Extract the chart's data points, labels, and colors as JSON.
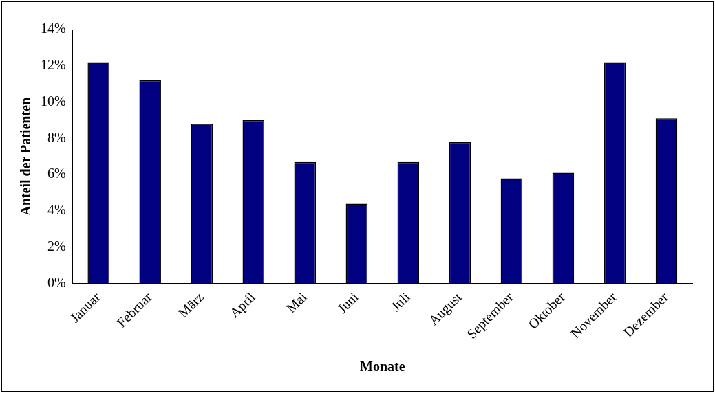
{
  "chart_data": {
    "type": "bar",
    "xlabel": "Monate",
    "ylabel": "Anteil der Patienten",
    "categories": [
      "Januar",
      "Februar",
      "März",
      "April",
      "Mai",
      "Juni",
      "Juli",
      "August",
      "September",
      "Oktober",
      "November",
      "Dezember"
    ],
    "values": [
      12.2,
      11.2,
      8.8,
      9.0,
      6.7,
      4.4,
      6.7,
      7.8,
      5.8,
      6.1,
      12.2,
      9.1
    ],
    "color": "#000080",
    "ylim": [
      0,
      14
    ],
    "yticks": [
      {
        "value": 0,
        "label": "0%"
      },
      {
        "value": 2,
        "label": "2%"
      },
      {
        "value": 4,
        "label": "4%"
      },
      {
        "value": 6,
        "label": "6%"
      },
      {
        "value": 8,
        "label": "8%"
      },
      {
        "value": 10,
        "label": "10%"
      },
      {
        "value": 12,
        "label": "12%"
      },
      {
        "value": 14,
        "label": "14%"
      }
    ],
    "grid": false,
    "legend": false
  }
}
